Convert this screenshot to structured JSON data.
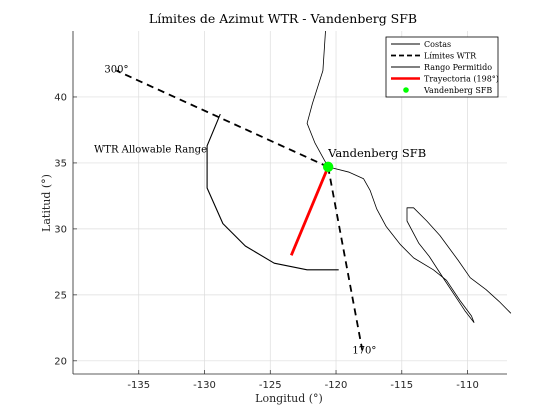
{
  "chart_data": {
    "type": "line",
    "title": "Límites de Azimut WTR - Vandenberg SFB",
    "xlabel": "Longitud (°)",
    "ylabel": "Latitud (°)",
    "xlim": [
      -140,
      -107
    ],
    "ylim": [
      19,
      45
    ],
    "xticks": [
      -135,
      -130,
      -125,
      -120,
      -115,
      -110
    ],
    "yticks": [
      20,
      25,
      30,
      35,
      40
    ],
    "grid": true,
    "legend_position": "top-right",
    "legend": [
      {
        "label": "Costas",
        "style": "solid-thin",
        "color": "#000000"
      },
      {
        "label": "Límites WTR",
        "style": "dashed",
        "color": "#000000"
      },
      {
        "label": "Rango Permitido",
        "style": "solid-thin",
        "color": "#000000"
      },
      {
        "label": "Trayectoria (198°)",
        "style": "solid-thick",
        "color": "#ff0000"
      },
      {
        "label": "Vandenberg SFB",
        "style": "marker",
        "color": "#00ff00"
      }
    ],
    "site": {
      "label": "Vandenberg SFB",
      "lon": -120.6,
      "lat": 34.7
    },
    "limits": [
      {
        "label": "300°",
        "points": [
          [
            -120.6,
            34.7
          ],
          [
            -136.7,
            42.0
          ]
        ]
      },
      {
        "label": "170°",
        "points": [
          [
            -120.6,
            34.7
          ],
          [
            -118.0,
            20.8
          ]
        ]
      }
    ],
    "allowable_range": {
      "label": "WTR Allowable Range",
      "points": [
        [
          -128.8,
          38.7
        ],
        [
          -129.8,
          36.3
        ],
        [
          -129.8,
          33.1
        ],
        [
          -128.6,
          30.4
        ],
        [
          -126.9,
          28.7
        ],
        [
          -124.7,
          27.4
        ],
        [
          -122.2,
          26.9
        ],
        [
          -119.8,
          26.9
        ]
      ]
    },
    "trajectory": {
      "azimuth": "198°",
      "points": [
        [
          -120.6,
          34.7
        ],
        [
          -123.4,
          28.0
        ]
      ]
    },
    "coastline": [
      [
        [
          -120.8,
          45.0
        ],
        [
          -121.0,
          42.0
        ],
        [
          -121.8,
          39.5
        ],
        [
          -122.2,
          38.0
        ],
        [
          -121.6,
          36.5
        ],
        [
          -120.6,
          34.7
        ],
        [
          -119.0,
          34.3
        ],
        [
          -117.9,
          33.8
        ],
        [
          -117.4,
          32.9
        ],
        [
          -116.9,
          31.5
        ],
        [
          -116.2,
          30.2
        ],
        [
          -115.1,
          28.8
        ],
        [
          -114.1,
          27.8
        ],
        [
          -112.6,
          26.9
        ],
        [
          -111.6,
          26.1
        ],
        [
          -110.6,
          24.6
        ],
        [
          -109.7,
          23.4
        ],
        [
          -109.5,
          22.9
        ]
      ],
      [
        [
          -109.5,
          22.9
        ],
        [
          -110.2,
          23.8
        ],
        [
          -111.8,
          26.2
        ],
        [
          -112.9,
          27.9
        ],
        [
          -113.7,
          28.9
        ],
        [
          -114.6,
          30.6
        ],
        [
          -114.6,
          31.6
        ],
        [
          -114.1,
          31.6
        ],
        [
          -113.1,
          30.6
        ],
        [
          -112.1,
          29.5
        ],
        [
          -110.7,
          27.6
        ],
        [
          -109.8,
          26.3
        ],
        [
          -108.6,
          25.4
        ],
        [
          -107.6,
          24.5
        ],
        [
          -106.7,
          23.6
        ]
      ]
    ]
  }
}
